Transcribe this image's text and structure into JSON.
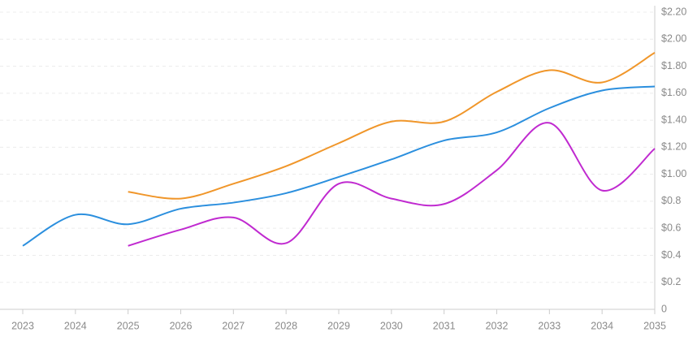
{
  "chart_data": {
    "type": "line",
    "categories": [
      "2023",
      "2024",
      "2025",
      "2026",
      "2027",
      "2028",
      "2029",
      "2030",
      "2031",
      "2032",
      "2033",
      "2034",
      "2035"
    ],
    "series": [
      {
        "color": "#2b8fde",
        "values": [
          0.47,
          0.7,
          0.63,
          0.745,
          0.79,
          0.86,
          0.98,
          1.11,
          1.25,
          1.31,
          1.49,
          1.62,
          1.65
        ]
      },
      {
        "color": "#f0962a",
        "values": [
          null,
          null,
          0.87,
          0.82,
          0.93,
          1.06,
          1.23,
          1.39,
          1.39,
          1.61,
          1.77,
          1.68,
          1.9
        ]
      },
      {
        "color": "#c02ad0",
        "values": [
          null,
          null,
          0.47,
          0.59,
          0.68,
          0.49,
          0.93,
          0.82,
          0.78,
          1.03,
          1.38,
          0.88,
          1.19
        ]
      }
    ],
    "ylim": [
      0,
      2.2
    ],
    "yticks": [
      0,
      {
        "value": 0.2,
        "label": "$0.2"
      },
      {
        "value": 0.4,
        "label": "$0.4"
      },
      {
        "value": 0.6,
        "label": "$0.6"
      },
      {
        "value": 0.8,
        "label": "$0.8"
      },
      {
        "value": 1.0,
        "label": "$1.00"
      },
      {
        "value": 1.2,
        "label": "$1.20"
      },
      {
        "value": 1.4,
        "label": "$1.40"
      },
      {
        "value": 1.6,
        "label": "$1.60"
      },
      {
        "value": 1.8,
        "label": "$1.80"
      },
      {
        "value": 2.0,
        "label": "$2.00"
      },
      {
        "value": 2.2,
        "label": "$2.20"
      }
    ],
    "grid": true
  }
}
